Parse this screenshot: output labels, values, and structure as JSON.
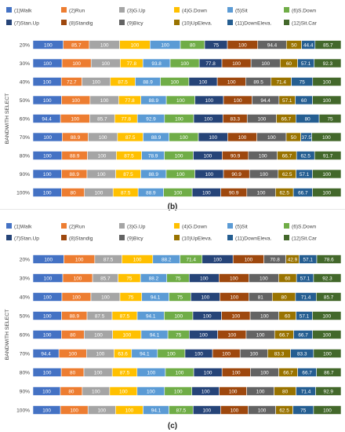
{
  "colors": {
    "walk": "#4472C4",
    "run": "#ED7D31",
    "gup": "#A5A5A5",
    "gdown": "#FFC000",
    "sit": "#5B9BD5",
    "sdown": "#70AD47",
    "stanup": "#264478",
    "standig": "#9E480E",
    "bicy": "#636363",
    "upeleva": "#997300",
    "downeleva": "#255E91",
    "sitcar": "#43682B"
  },
  "chart_data": [
    {
      "type": "bar",
      "orientation": "horizontal",
      "stacked": true,
      "caption": "(b)",
      "ylabel": "BANDWITH SELECT",
      "categories": [
        "20%",
        "30%",
        "40%",
        "50%",
        "60%",
        "70%",
        "80%",
        "90%",
        "100%"
      ],
      "legend_placement": "top",
      "series": [
        {
          "name": "(1)Walk",
          "color": "#4472C4",
          "values": [
            100,
            100,
            100,
            100,
            94.4,
            100,
            100,
            100,
            100
          ]
        },
        {
          "name": "(2)Run",
          "color": "#ED7D31",
          "values": [
            85.7,
            100,
            72.7,
            100,
            100,
            88.9,
            88.9,
            88.9,
            80
          ]
        },
        {
          "name": "(3)G.Up",
          "color": "#A5A5A5",
          "values": [
            100,
            100,
            100,
            100,
            85.7,
            100,
            100,
            100,
            100
          ]
        },
        {
          "name": "(4)G.Down",
          "color": "#FFC000",
          "values": [
            100,
            77.8,
            87.5,
            77.8,
            77.8,
            87.5,
            87.5,
            87.5,
            87.5
          ]
        },
        {
          "name": "(5)Sit",
          "color": "#5B9BD5",
          "values": [
            100,
            93.8,
            88.9,
            88.9,
            92.9,
            88.9,
            78.9,
            88.9,
            88.9
          ]
        },
        {
          "name": "(6)S.Down",
          "color": "#70AD47",
          "values": [
            80,
            100,
            100,
            100,
            100,
            100,
            100,
            100,
            100
          ]
        },
        {
          "name": "(7)Stan.Up",
          "color": "#264478",
          "values": [
            75,
            77.8,
            100,
            100,
            100,
            100,
            100,
            100,
            100
          ]
        },
        {
          "name": "(8)Standig",
          "color": "#9E480E",
          "values": [
            100,
            100,
            100,
            100,
            83.3,
            100,
            90.9,
            90.9,
            90.9
          ]
        },
        {
          "name": "(9)Bicy",
          "color": "#636363",
          "values": [
            94.4,
            100,
            89.5,
            94.4,
            100,
            100,
            100,
            100,
            100
          ]
        },
        {
          "name": "(10)UpEleva.",
          "color": "#997300",
          "values": [
            50,
            60,
            71.4,
            57.1,
            66.7,
            50,
            66.7,
            62.5,
            62.5
          ]
        },
        {
          "name": "(11)DownEleva.",
          "color": "#255E91",
          "values": [
            44.4,
            57.1,
            75,
            60,
            80,
            37.5,
            62.5,
            57.1,
            66.7
          ]
        },
        {
          "name": "(12)Sit.Car",
          "color": "#43682B",
          "values": [
            85.7,
            92.3,
            100,
            100,
            75,
            100,
            91.7,
            100,
            100
          ]
        }
      ],
      "legend_rows": [
        [
          "(1)Walk",
          "(2)Run",
          "(3)G.Up",
          "(4)G.Down",
          "(5)Sit",
          "(6)S.Down"
        ],
        [
          "(7)Stan.Up",
          "(8)Standig",
          "(9)Bicy",
          "(10)UpEleva.",
          "(11)DownEleva.",
          "(12)Sit.Car"
        ]
      ]
    },
    {
      "type": "bar",
      "orientation": "horizontal",
      "stacked": true,
      "caption": "(c)",
      "ylabel": "BANDWITH SELECT",
      "categories": [
        "20%",
        "30%",
        "40%",
        "50%",
        "60%",
        "70%",
        "80%",
        "90%",
        "100%"
      ],
      "legend_placement": "top",
      "series": [
        {
          "name": "(1)Walk",
          "color": "#4472C4",
          "values": [
            100,
            100,
            100,
            100,
            100,
            94.4,
            100,
            100,
            100
          ]
        },
        {
          "name": "(2)Run",
          "color": "#ED7D31",
          "values": [
            100,
            100,
            100,
            88.9,
            80,
            100,
            80,
            80,
            100
          ]
        },
        {
          "name": "(3)G.Up",
          "color": "#A5A5A5",
          "values": [
            87.5,
            85.7,
            100,
            87.5,
            100,
            100,
            100,
            100,
            100
          ]
        },
        {
          "name": "(4)G.Down",
          "color": "#FFC000",
          "values": [
            100,
            75,
            75,
            87.5,
            100,
            63.6,
            87.5,
            100,
            100
          ]
        },
        {
          "name": "(5)Sit",
          "color": "#5B9BD5",
          "values": [
            88.2,
            88.2,
            94.1,
            94.1,
            94.1,
            94.1,
            100,
            100,
            94.1
          ]
        },
        {
          "name": "(6)S.Down",
          "color": "#70AD47",
          "values": [
            71.4,
            75,
            75,
            100,
            75,
            100,
            100,
            100,
            87.5
          ]
        },
        {
          "name": "(7)Stan.Up",
          "color": "#264478",
          "values": [
            100,
            100,
            100,
            100,
            100,
            100,
            100,
            100,
            100
          ]
        },
        {
          "name": "(8)Standig",
          "color": "#9E480E",
          "values": [
            100,
            100,
            100,
            100,
            100,
            100,
            100,
            100,
            100
          ]
        },
        {
          "name": "(9)Bicy",
          "color": "#636363",
          "values": [
            70.8,
            100,
            81,
            100,
            100,
            100,
            100,
            100,
            100
          ]
        },
        {
          "name": "(10)UpEleva.",
          "color": "#997300",
          "values": [
            42.9,
            60,
            80,
            60,
            66.7,
            83.3,
            66.7,
            80,
            62.5
          ]
        },
        {
          "name": "(11)DownEleva.",
          "color": "#255E91",
          "values": [
            57.1,
            57.1,
            71.4,
            57.1,
            66.7,
            83.3,
            66.7,
            71.4,
            75
          ]
        },
        {
          "name": "(12)Sit.Car",
          "color": "#43682B",
          "values": [
            78.6,
            92.3,
            85.7,
            100,
            100,
            100,
            86.7,
            92.9,
            100
          ]
        }
      ],
      "legend_rows": [
        [
          "(1)Walk",
          "(2)Run",
          "(3)G.Up",
          "(4)G.Down",
          "(5)Sit",
          "(6)S.Down"
        ],
        [
          "(7)Stan.Up",
          "(8)Standig",
          "(9)Bicy",
          "(10)UpEleva.",
          "(11)DownEleva.",
          "(12)Sit.Car"
        ]
      ]
    }
  ]
}
